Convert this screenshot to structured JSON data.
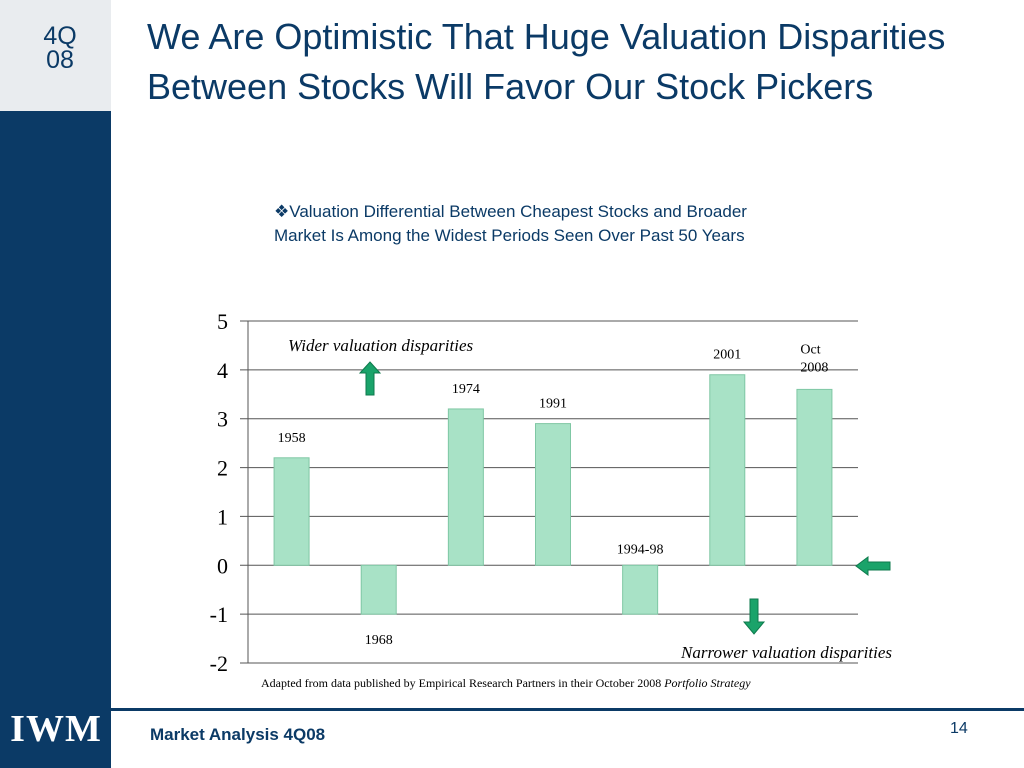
{
  "slide": {
    "quarter_line1": "4Q",
    "quarter_line2": "08",
    "title": "We Are Optimistic That Huge Valuation Disparities Between Stocks Will Favor Our Stock Pickers",
    "bullet_text": "Valuation Differential Between Cheapest Stocks and Broader Market Is Among the Widest Periods Seen Over Past 50 Years",
    "logo_text": "IWM",
    "footer_text": "Market Analysis 4Q08",
    "page_number": "14",
    "caption_text": "Adapted from data published by Empirical Research Partners in their October 2008 ",
    "caption_italic": "Portfolio Strategy"
  },
  "colors": {
    "navy": "#0b3a66",
    "bar_fill": "#a8e2c6",
    "bar_stroke": "#7fc7a4",
    "arrow_green": "#1aa36a"
  },
  "chart_data": {
    "type": "bar",
    "categories": [
      "1958",
      "1968",
      "1974",
      "1991",
      "1994-98",
      "2001",
      "Oct 2008"
    ],
    "values": [
      2.2,
      -1.0,
      3.2,
      2.9,
      -1.0,
      3.9,
      3.6
    ],
    "ylim": [
      -2,
      5
    ],
    "yticks": [
      5,
      4,
      3,
      2,
      1,
      0,
      -1,
      -2
    ],
    "grid": true,
    "annotations": {
      "top": "Wider valuation disparities",
      "bottom": "Narrower valuation disparities"
    }
  }
}
